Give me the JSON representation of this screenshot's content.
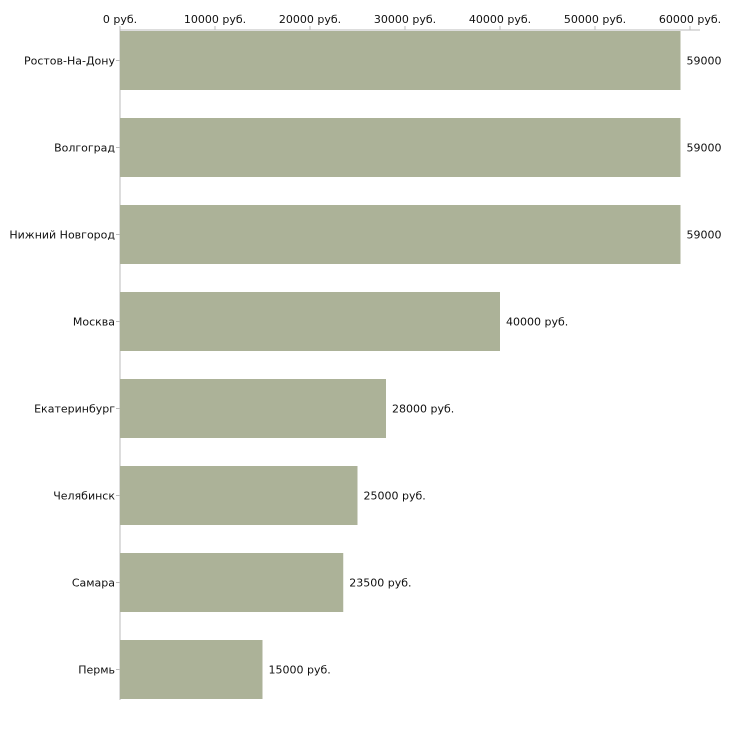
{
  "chart_data": {
    "type": "bar",
    "orientation": "horizontal",
    "title": "",
    "xlabel": "",
    "ylabel": "",
    "xlim": [
      0,
      60000
    ],
    "axis_position": "top",
    "grid": false,
    "legend": "none",
    "tick_labels": [
      "0 руб.",
      "10000 руб.",
      "20000 руб.",
      "30000 руб.",
      "40000 руб.",
      "50000 руб.",
      "60000 руб."
    ],
    "tick_values": [
      0,
      10000,
      20000,
      30000,
      40000,
      50000,
      60000
    ],
    "categories": [
      "Ростов-На-Дону",
      "Волгоград",
      "Нижний Новгород",
      "Москва",
      "Екатеринбург",
      "Челябинск",
      "Самара",
      "Пермь"
    ],
    "values": [
      59000,
      59000,
      59000,
      40000,
      28000,
      25000,
      23500,
      15000
    ],
    "data_labels": [
      "59000",
      "59000",
      "59000",
      "40000 руб.",
      "28000 руб.",
      "25000 руб.",
      "23500 руб.",
      "15000 руб."
    ],
    "colors": {
      "bar": "#acb298",
      "axis": "#bbbbbb",
      "text": "#111111"
    }
  }
}
